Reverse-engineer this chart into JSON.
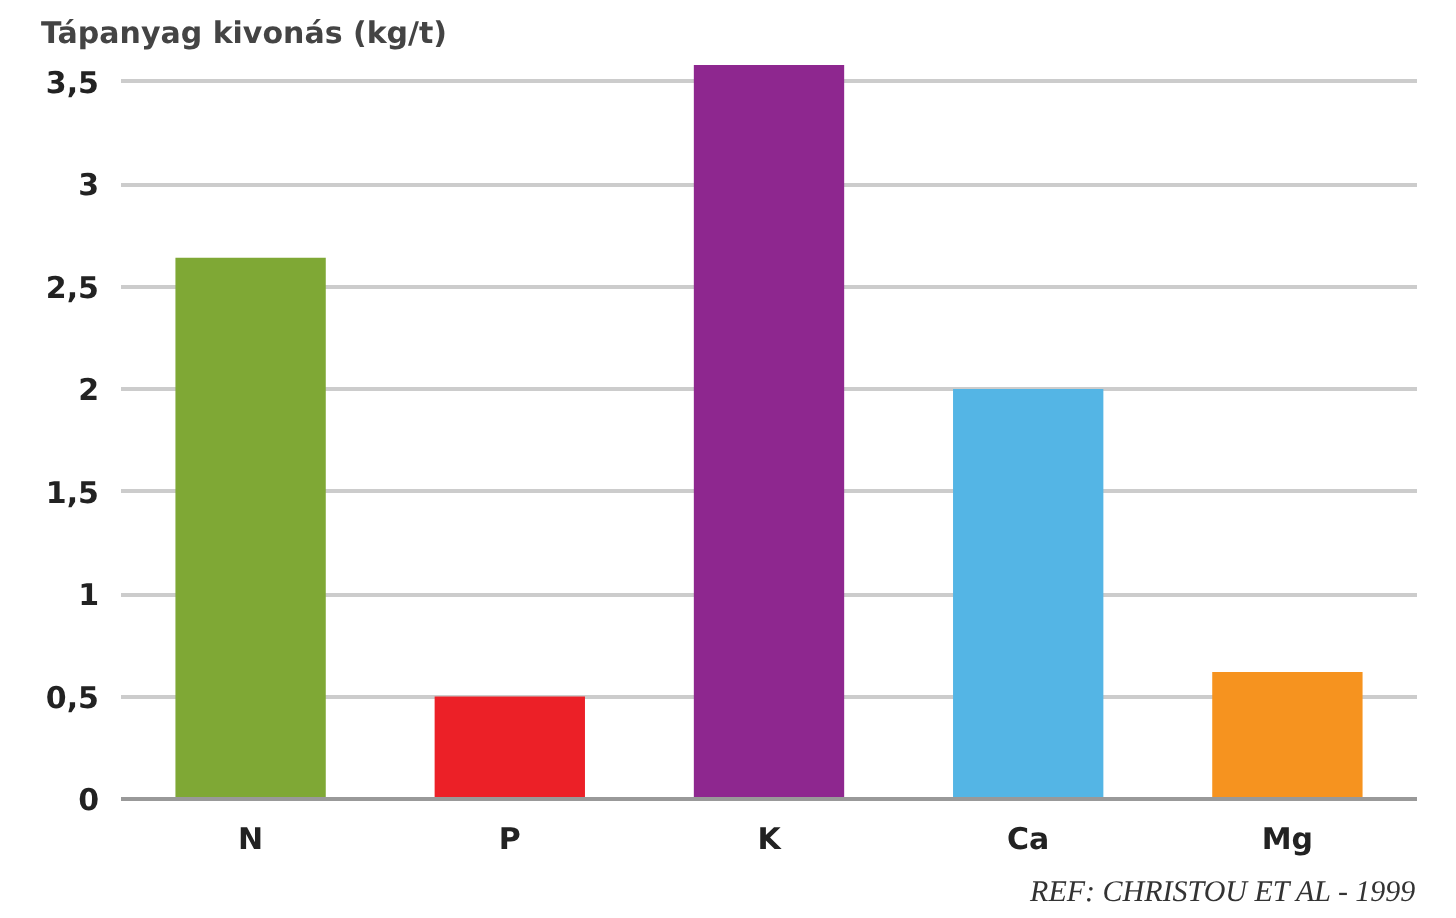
{
  "chart_data": {
    "type": "bar",
    "title": "Tápanyag kivonás (kg/t)",
    "categories": [
      "N",
      "P",
      "K",
      "Ca",
      "Mg"
    ],
    "values": [
      2.64,
      0.5,
      3.58,
      2.0,
      0.62
    ],
    "colors": [
      "#7fa835",
      "#ec2027",
      "#8e278f",
      "#54b5e5",
      "#f6931f"
    ],
    "ylim": [
      0,
      3.6
    ],
    "yticks": [
      0,
      {
        "value": 0.5,
        "label": "0,5"
      },
      1,
      {
        "value": 1.5,
        "label": "1,5"
      },
      2,
      {
        "value": 2.5,
        "label": "2,5"
      },
      3,
      {
        "value": 3.5,
        "label": "3,5"
      }
    ],
    "grid": "y",
    "annotations": [
      "REF: CHRISTOU ET AL - 1999"
    ]
  }
}
